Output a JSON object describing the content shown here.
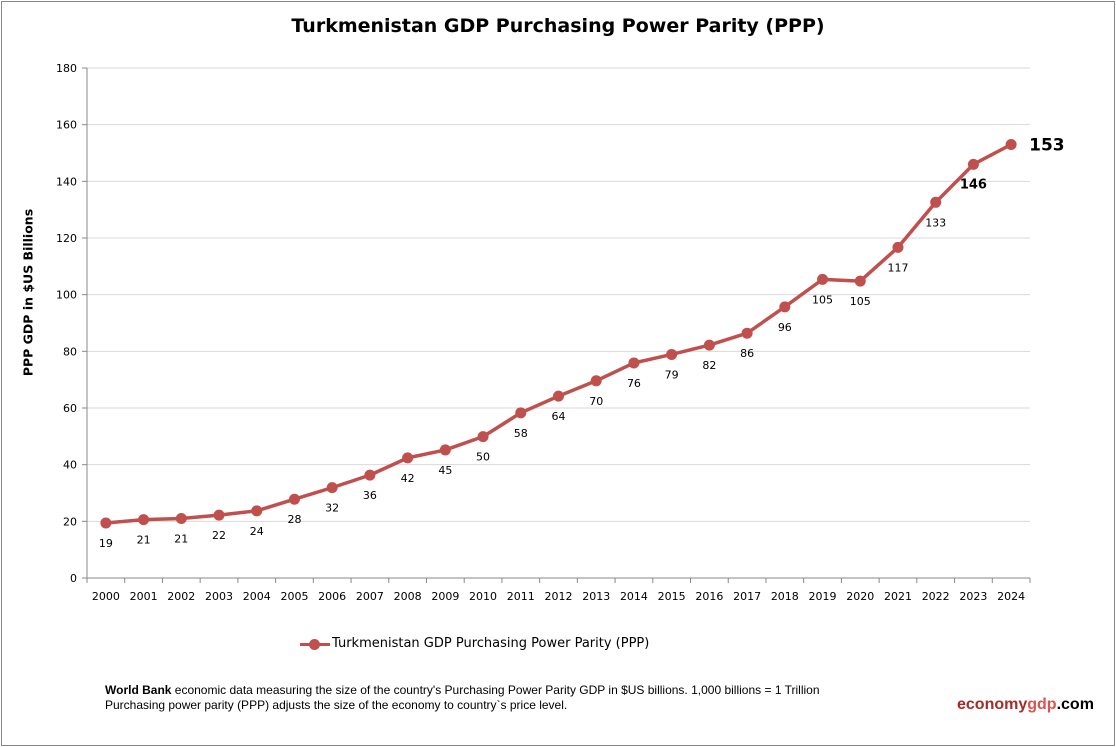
{
  "chart_data": {
    "type": "line",
    "title": "Turkmenistan GDP Purchasing Power Parity (PPP)",
    "xlabel": "",
    "ylabel": "PPP GDP in $US Billions",
    "ylim": [
      0,
      180
    ],
    "yticks": [
      0,
      20,
      40,
      60,
      80,
      100,
      120,
      140,
      160,
      180
    ],
    "grid": true,
    "legend_position": "bottom",
    "categories": [
      "2000",
      "2001",
      "2002",
      "2003",
      "2004",
      "2005",
      "2006",
      "2007",
      "2008",
      "2009",
      "2010",
      "2011",
      "2012",
      "2013",
      "2014",
      "2015",
      "2016",
      "2017",
      "2018",
      "2019",
      "2020",
      "2021",
      "2022",
      "2023",
      "2024"
    ],
    "series": [
      {
        "name": "Turkmenistan GDP Purchasing Power Parity (PPP)",
        "color": "#c0504d",
        "values": [
          19.4,
          20.6,
          21,
          22.2,
          23.7,
          27.8,
          31.9,
          36.3,
          42.4,
          45.2,
          49.9,
          58.3,
          64.2,
          69.6,
          75.9,
          78.9,
          82.2,
          86.4,
          95.7,
          105.4,
          104.8,
          116.7,
          132.6,
          146,
          153
        ],
        "labels": [
          "19",
          "21",
          "21",
          "22",
          "24",
          "28",
          "32",
          "36",
          "42",
          "45",
          "50",
          "58",
          "64",
          "70",
          "76",
          "79",
          "82",
          "86",
          "96",
          "105",
          "105",
          "117",
          "133",
          "146",
          "153"
        ]
      }
    ]
  },
  "footer": {
    "source_bold": "World Bank",
    "line1": " economic data  measuring the size of the country's Purchasing Power Parity GDP in $US billions. 1,000 billions = 1 Trillion",
    "line2": "Purchasing power parity (PPP) adjusts the size of the economy to country`s price level."
  },
  "brand": {
    "part1": "economy",
    "part2": "gdp",
    "part3": ".com",
    "color1": "#a52a2a",
    "color2": "#d9534f"
  }
}
